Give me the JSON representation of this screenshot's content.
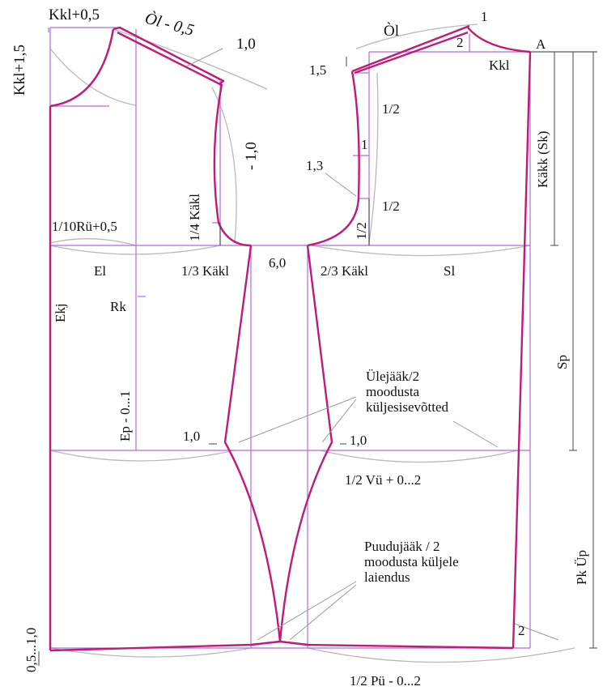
{
  "labels": {
    "kkl_plus_05": "Kkl+0,5",
    "ol_minus_05": "Òl - 0,5",
    "kkl_plus_15": "Kkl+1,5",
    "one_zero_top": "1,0",
    "minus_one_zero": "- 1,0",
    "quarter_kakl": "1/4 Käkl",
    "tenth_ru": "1/10Rü+0,5",
    "el": "El",
    "third_kakl": "1/3 Käkl",
    "six_zero": "6,0",
    "two_third_kakl": "2/3 Käkl",
    "sl": "Sl",
    "ekj": "Ekj",
    "rk": "Rk",
    "ep": "Ep - 0...1",
    "one_zero_left": "1,0",
    "one_zero_right": "1,0",
    "ol": "Òl",
    "one": "1",
    "two": "2",
    "a": "A",
    "kkl": "Kkl",
    "one_five": "1,5",
    "half_1": "1/2",
    "one_mid": "1",
    "one_three": "1,3",
    "half_2": "1/2",
    "half_3": "1/2",
    "kakk_sk": "Käkk (Sk)",
    "sp": "Sp",
    "pk_up": "Pk Üp",
    "ulejaak_1": "Ülejääk/2",
    "ulejaak_2": "moodusta",
    "ulejaak_3": "küljesisevõtted",
    "half_vu": "1/2 Vü + 0...2",
    "puudu_1": "Puudujääk / 2",
    "puudu_2": "moodusta küljele",
    "puudu_3": "laiendus",
    "two_bottom": "2",
    "bottom_left": "0,5...1,0",
    "half_pu": "1/2 Pü - 0...2"
  },
  "colors": {
    "pattern_line": "#c01a7a",
    "guide_line": "#b46be0",
    "arc_line": "#b9b9b9",
    "text": "#111111"
  }
}
